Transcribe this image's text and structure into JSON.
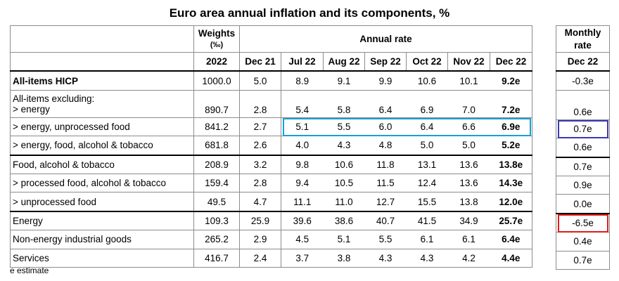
{
  "title": "Euro area annual inflation and its components, %",
  "header": {
    "weights_label": "Weights",
    "weights_unit": "(‰)",
    "annual_rate_label": "Annual rate",
    "monthly_label_line1": "Monthly",
    "monthly_label_line2": "rate",
    "year": "2022",
    "months": [
      "Dec 21",
      "Jul 22",
      "Aug 22",
      "Sep 22",
      "Oct 22",
      "Nov 22",
      "Dec 22"
    ],
    "monthly_month": "Dec 22"
  },
  "subheader": "All-items excluding:",
  "rows": [
    {
      "label": "All-items HICP",
      "weight": "1000.0",
      "rates": [
        "5.0",
        "8.9",
        "9.1",
        "9.9",
        "10.6",
        "10.1",
        "9.2e"
      ],
      "monthly": "-0.3e"
    },
    {
      "label": "> energy",
      "weight": "890.7",
      "rates": [
        "2.8",
        "5.4",
        "5.8",
        "6.4",
        "6.9",
        "7.0",
        "7.2e"
      ],
      "monthly": "0.6e"
    },
    {
      "label": "> energy, unprocessed food",
      "weight": "841.2",
      "rates": [
        "2.7",
        "5.1",
        "5.5",
        "6.0",
        "6.4",
        "6.6",
        "6.9e"
      ],
      "monthly": "0.7e"
    },
    {
      "label": "> energy, food, alcohol & tobacco",
      "weight": "681.8",
      "rates": [
        "2.6",
        "4.0",
        "4.3",
        "4.8",
        "5.0",
        "5.0",
        "5.2e"
      ],
      "monthly": "0.6e"
    },
    {
      "label": "Food, alcohol & tobacco",
      "weight": "208.9",
      "rates": [
        "3.2",
        "9.8",
        "10.6",
        "11.8",
        "13.1",
        "13.6",
        "13.8e"
      ],
      "monthly": "0.7e"
    },
    {
      "label": "> processed food, alcohol & tobacco",
      "weight": "159.4",
      "rates": [
        "2.8",
        "9.4",
        "10.5",
        "11.5",
        "12.4",
        "13.6",
        "14.3e"
      ],
      "monthly": "0.9e"
    },
    {
      "label": "> unprocessed food",
      "weight": "49.5",
      "rates": [
        "4.7",
        "11.1",
        "11.0",
        "12.7",
        "15.5",
        "13.8",
        "12.0e"
      ],
      "monthly": "0.0e"
    },
    {
      "label": "Energy",
      "weight": "109.3",
      "rates": [
        "25.9",
        "39.6",
        "38.6",
        "40.7",
        "41.5",
        "34.9",
        "25.7e"
      ],
      "monthly": "-6.5e"
    },
    {
      "label": "Non-energy industrial goods",
      "weight": "265.2",
      "rates": [
        "2.9",
        "4.5",
        "5.1",
        "5.5",
        "6.1",
        "6.1",
        "6.4e"
      ],
      "monthly": "0.4e"
    },
    {
      "label": "Services",
      "weight": "416.7",
      "rates": [
        "2.4",
        "3.7",
        "3.8",
        "4.3",
        "4.3",
        "4.2",
        "4.4e"
      ],
      "monthly": "0.7e"
    }
  ],
  "footnote": "e estimate",
  "highlight_colors": {
    "annual_row": "#1a9fd8",
    "monthly_cell": "#3a3ab0",
    "energy_monthly": "#e01b1b"
  }
}
